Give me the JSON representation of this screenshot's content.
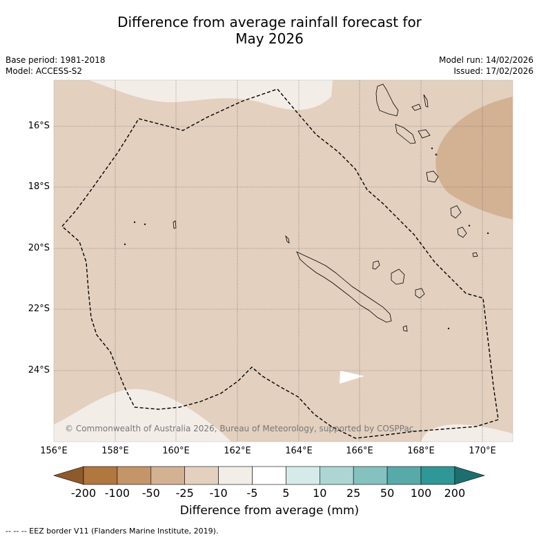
{
  "title_line1": "Difference from average rainfall forecast for",
  "title_line2": "May 2026",
  "base_period": "Base period: 1981-2018",
  "model": "Model: ACCESS-S2",
  "model_run": "Model run: 14/02/2026",
  "issued": "Issued: 17/02/2026",
  "latitude_labels": [
    "16°S",
    "18°S",
    "20°S",
    "22°S",
    "24°S"
  ],
  "longitude_labels": [
    "156°E",
    "158°E",
    "160°E",
    "162°E",
    "164°E",
    "166°E",
    "168°E",
    "170°E"
  ],
  "copyright": "© Commonwealth of Australia 2026, Bureau of Meteorology, supported by COSPPac",
  "colorbar": {
    "ticks": [
      "-200",
      "-100",
      "-50",
      "-25",
      "-10",
      "-5",
      "5",
      "10",
      "25",
      "50",
      "100",
      "200"
    ],
    "colors": [
      "#8c5a2b",
      "#b0773f",
      "#c39569",
      "#d3b193",
      "#e3d0bf",
      "#f3ede8",
      "#ffffff",
      "#d5ebea",
      "#acd5d4",
      "#84c1bf",
      "#58aaa9",
      "#2f9795",
      "#1c6f6e"
    ],
    "title": "Difference from average (mm)"
  },
  "footnote": "--  --  -- EEZ border V11 (Flanders Marine Institute, 2019)."
}
